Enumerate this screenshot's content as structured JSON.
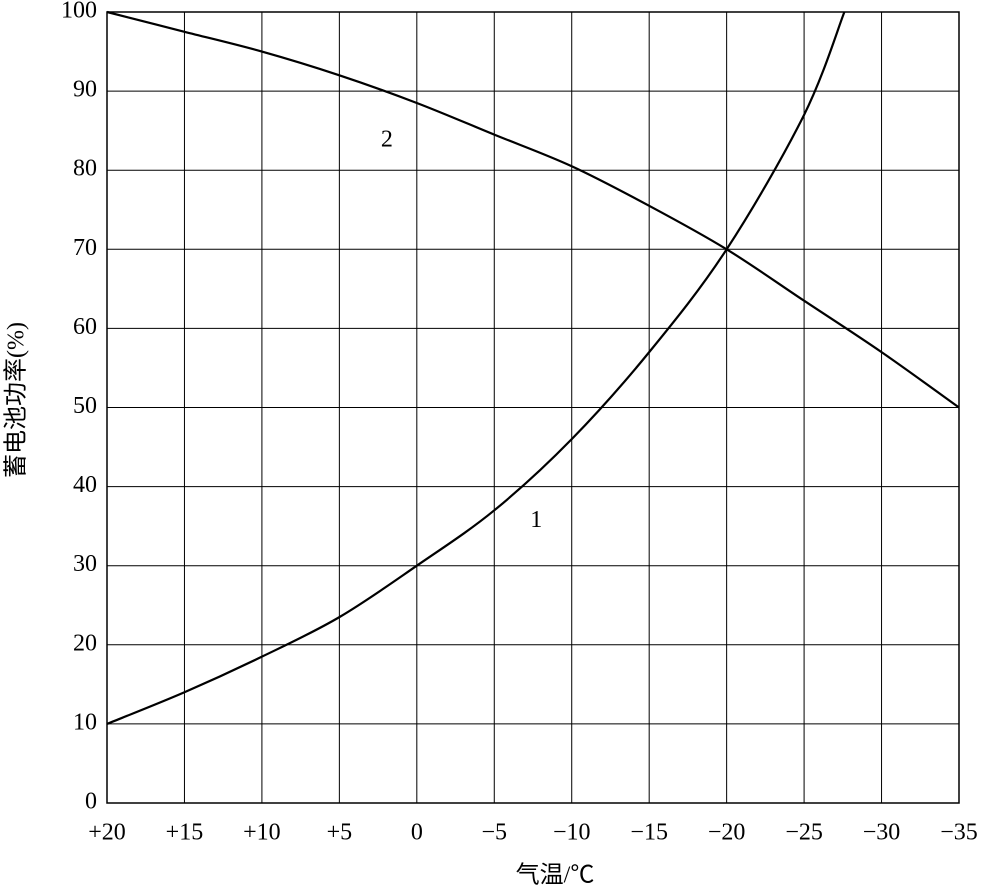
{
  "chart_data": {
    "type": "line",
    "x_label": "气温/℃",
    "y_label": "蓄电池功率(%)",
    "xlim": [
      20,
      -35
    ],
    "ylim": [
      0,
      100
    ],
    "xticks": [
      {
        "value": 20,
        "label": "+20"
      },
      {
        "value": 15,
        "label": "+15"
      },
      {
        "value": 10,
        "label": "+10"
      },
      {
        "value": 5,
        "label": "+5"
      },
      0,
      {
        "value": -5,
        "label": "−5"
      },
      {
        "value": -10,
        "label": "−10"
      },
      {
        "value": -15,
        "label": "−15"
      },
      {
        "value": -20,
        "label": "−20"
      },
      {
        "value": -25,
        "label": "−25"
      },
      {
        "value": -30,
        "label": "−30"
      },
      {
        "value": -35,
        "label": "−35"
      }
    ],
    "yticks": [
      0,
      10,
      20,
      30,
      40,
      50,
      60,
      70,
      80,
      90,
      100
    ],
    "grid": true,
    "color": "#000000",
    "series": [
      {
        "name": "1",
        "x": [
          20,
          15,
          10,
          5,
          0,
          -5,
          -10,
          -15,
          -20,
          -25,
          -27.6
        ],
        "values": [
          10,
          14,
          18.5,
          23.5,
          30,
          37,
          46,
          57,
          70,
          87,
          100
        ]
      },
      {
        "name": "2",
        "x": [
          20,
          15,
          10,
          5,
          0,
          -5,
          -10,
          -15,
          -20,
          -25,
          -30,
          -35
        ],
        "values": [
          100,
          97.5,
          95,
          92,
          88.5,
          84.5,
          80.5,
          75.5,
          70,
          63.5,
          57,
          50
        ]
      }
    ]
  }
}
